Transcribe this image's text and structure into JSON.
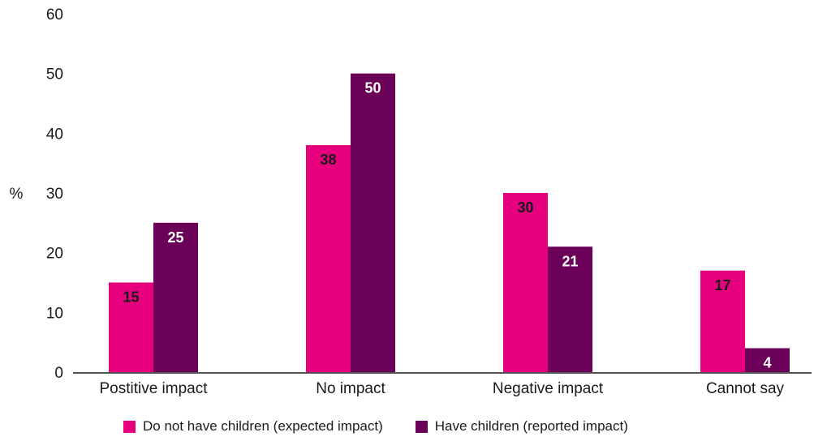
{
  "chart_data": {
    "type": "bar",
    "title": "",
    "xlabel": "",
    "ylabel": "%",
    "ylim": [
      0,
      60
    ],
    "yticks": [
      0,
      10,
      20,
      30,
      40,
      50,
      60
    ],
    "grid": false,
    "legend_position": "bottom",
    "categories": [
      "Postitive impact",
      "No impact",
      "Negative impact",
      "Cannot say"
    ],
    "series": [
      {
        "name": "Do not have children (expected impact)",
        "color": "#e6007e",
        "label_color": "#1a1a1a",
        "values": [
          15,
          38,
          30,
          17
        ]
      },
      {
        "name": "Have children (reported impact)",
        "color": "#6b0058",
        "label_color": "#ffffff",
        "values": [
          25,
          50,
          21,
          4
        ]
      }
    ]
  }
}
